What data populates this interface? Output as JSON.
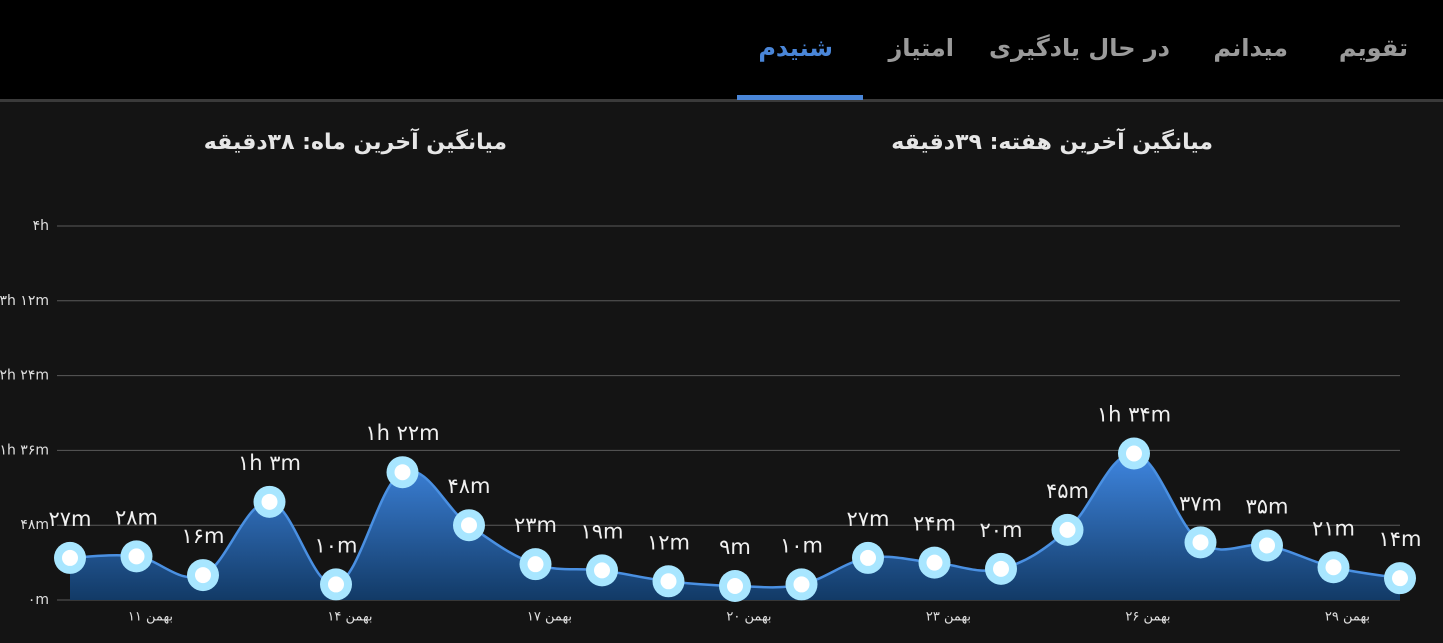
{
  "tabs": [
    "تقویم",
    "میدانم",
    "در حال یادگیری",
    "امتیاز",
    "شنیدم"
  ],
  "summaries": {
    "week": "میانگین آخرین هفته: ۳۹دقیقه",
    "month": "میانگین آخرین ماه: ۳۸دقیقه"
  },
  "chart_data": {
    "type": "area",
    "categories": [
      null,
      "۱۱ بهمن",
      null,
      null,
      "۱۴ بهمن",
      null,
      null,
      "۱۷ بهمن",
      null,
      null,
      "۲۰ بهمن",
      null,
      null,
      "۲۳ بهمن",
      null,
      null,
      "۲۶ بهمن",
      null,
      null,
      "۲۹ بهمن",
      null
    ],
    "values": [
      27,
      28,
      16,
      63,
      10,
      82,
      48,
      23,
      19,
      12,
      9,
      10,
      27,
      24,
      20,
      45,
      94,
      37,
      35,
      21,
      14
    ],
    "value_labels": [
      "۲۷m",
      "۲۸m",
      "۱۶m",
      "۱h ۳m",
      "۱۰m",
      "۱h ۲۲m",
      "۴۸m",
      "۲۳m",
      "۱۹m",
      "۱۲m",
      "۹m",
      "۱۰m",
      "۲۷m",
      "۲۴m",
      "۲۰m",
      "۴۵m",
      "۱h ۳۴m",
      "۳۷m",
      "۳۵m",
      "۲۱m",
      "۱۴m"
    ],
    "color": "#4a90e2",
    "ylim": [
      0,
      240
    ],
    "yticks": [
      {
        "value": 0,
        "label": "۰m"
      },
      {
        "value": 48,
        "label": "۴۸m"
      },
      {
        "value": 96,
        "label": "۱h ۳۶m"
      },
      {
        "value": 144,
        "label": "۲h ۲۴m"
      },
      {
        "value": 192,
        "label": "۳h ۱۲m"
      },
      {
        "value": 240,
        "label": "۴h"
      }
    ],
    "grid": true
  }
}
